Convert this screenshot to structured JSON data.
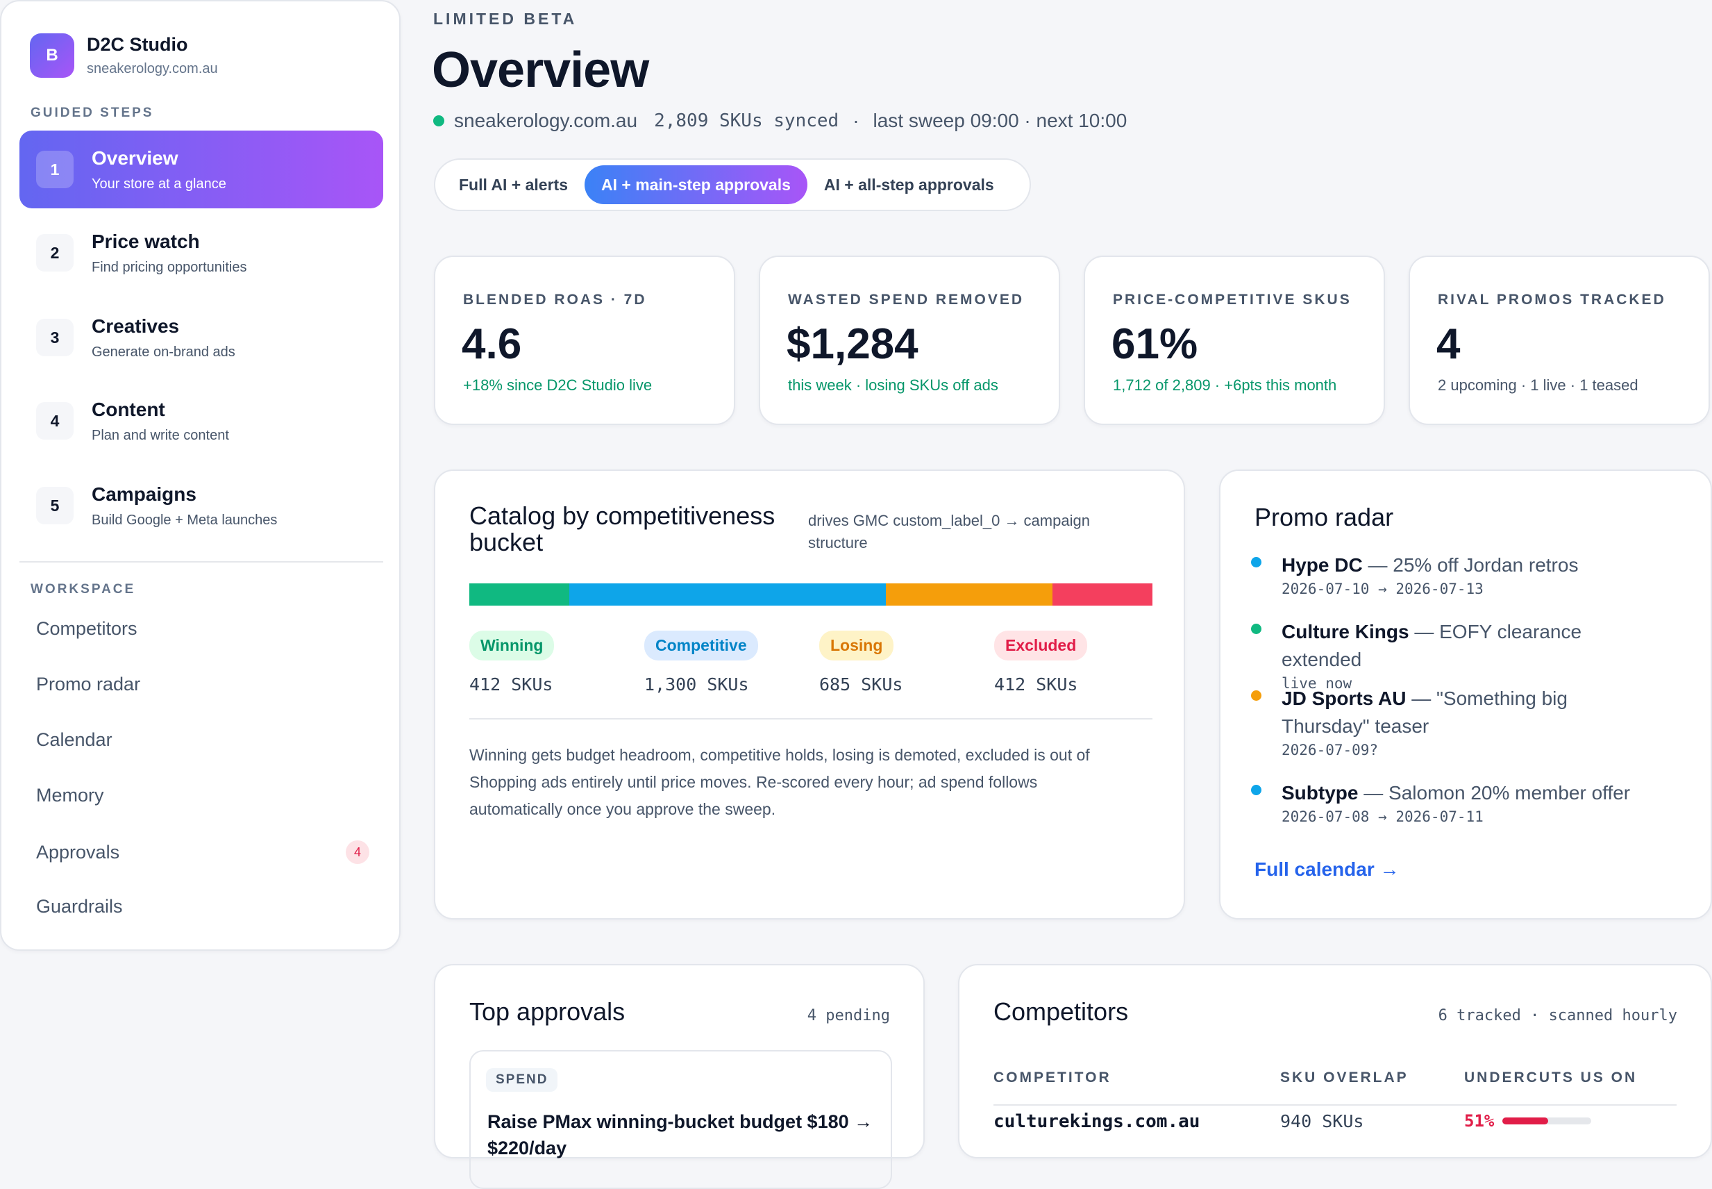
{
  "brand": {
    "logo_letter": "B",
    "name": "D2C Studio",
    "url": "sneakerology.com.au"
  },
  "sidebar": {
    "guided_label": "GUIDED STEPS",
    "steps": [
      {
        "num": "1",
        "title": "Overview",
        "sub": "Your store at a glance"
      },
      {
        "num": "2",
        "title": "Price watch",
        "sub": "Find pricing opportunities"
      },
      {
        "num": "3",
        "title": "Creatives",
        "sub": "Generate on-brand ads"
      },
      {
        "num": "4",
        "title": "Content",
        "sub": "Plan and write content"
      },
      {
        "num": "5",
        "title": "Campaigns",
        "sub": "Build Google + Meta launches"
      }
    ],
    "workspace_label": "WORKSPACE",
    "workspace": [
      {
        "label": "Competitors"
      },
      {
        "label": "Promo radar"
      },
      {
        "label": "Calendar"
      },
      {
        "label": "Memory"
      },
      {
        "label": "Approvals",
        "badge": "4"
      },
      {
        "label": "Guardrails"
      }
    ]
  },
  "header": {
    "eyebrow": "LIMITED BETA",
    "title": "Overview",
    "store": "sneakerology.com.au",
    "skus": "2,809 SKUs synced",
    "sep": "·",
    "sweep": "last sweep 09:00 · next 10:00"
  },
  "modes": [
    "Full AI + alerts",
    "AI + main-step approvals",
    "AI + all-step approvals"
  ],
  "kpis": [
    {
      "label": "BLENDED ROAS · 7D",
      "value": "4.6",
      "sub": "+18% since D2C Studio live",
      "sub_color": "#059669"
    },
    {
      "label": "WASTED SPEND REMOVED",
      "value": "$1,284",
      "sub": "this week · losing SKUs off ads",
      "sub_color": "#059669"
    },
    {
      "label": "PRICE-COMPETITIVE SKUS",
      "value": "61%",
      "sub": "1,712 of 2,809 · +6pts this month",
      "sub_color": "#059669"
    },
    {
      "label": "RIVAL PROMOS TRACKED",
      "value": "4",
      "sub": "2 upcoming · 1 live · 1 teased",
      "sub_color": "#475569"
    }
  ],
  "catalog": {
    "title": "Catalog by competitiveness bucket",
    "note": "drives GMC custom_label_0 → campaign structure",
    "buckets": [
      {
        "label": "Winning",
        "count": "412",
        "unit": "SKUs",
        "share": 0.1467,
        "bar_color": "#10b981",
        "pill_bg": "#dcfce7",
        "pill_fg": "#059669"
      },
      {
        "label": "Competitive",
        "count": "1,300",
        "unit": "SKUs",
        "share": 0.4628,
        "bar_color": "#0ea5e9",
        "pill_bg": "#dbeafe",
        "pill_fg": "#0284c7"
      },
      {
        "label": "Losing",
        "count": "685",
        "unit": "SKUs",
        "share": 0.2439,
        "bar_color": "#f59e0b",
        "pill_bg": "#fef3c7",
        "pill_fg": "#d97706"
      },
      {
        "label": "Excluded",
        "count": "412",
        "unit": "SKUs",
        "share": 0.1467,
        "bar_color": "#f43f5e",
        "pill_bg": "#ffe4e6",
        "pill_fg": "#e11d48"
      }
    ],
    "description": "Winning gets budget headroom, competitive holds, losing is demoted, excluded is out of Shopping ads entirely until price moves. Re-scored every hour; ad spend follows automatically once you approve the sweep."
  },
  "promo": {
    "title": "Promo radar",
    "items": [
      {
        "name": "Hype DC",
        "desc": " — 25% off Jordan retros",
        "date": "2026-07-10 → 2026-07-13",
        "dot": "#0ea5e9"
      },
      {
        "name": "Culture Kings",
        "desc": " — EOFY clearance extended",
        "date": "live now",
        "dot": "#10b981"
      },
      {
        "name": "JD Sports AU",
        "desc": " — \"Something big Thursday\" teaser",
        "date": "2026-07-09?",
        "dot": "#f59e0b"
      },
      {
        "name": "Subtype",
        "desc": " — Salomon 20% member offer",
        "date": "2026-07-08 → 2026-07-11",
        "dot": "#0ea5e9"
      }
    ],
    "link": "Full calendar →"
  },
  "approvals": {
    "title": "Top approvals",
    "count": "4 pending",
    "first": {
      "tag": "SPEND",
      "title": "Raise PMax winning-bucket budget $180 → $220/day"
    }
  },
  "competitors": {
    "title": "Competitors",
    "meta": "6 tracked · scanned hourly",
    "headers": [
      "COMPETITOR",
      "SKU OVERLAP",
      "UNDERCUTS US ON"
    ],
    "rows": [
      {
        "domain": "culturekings.com.au",
        "overlap": "940",
        "unit": "SKUs",
        "undercut": "51%",
        "undercut_fraction": 0.51
      }
    ]
  }
}
